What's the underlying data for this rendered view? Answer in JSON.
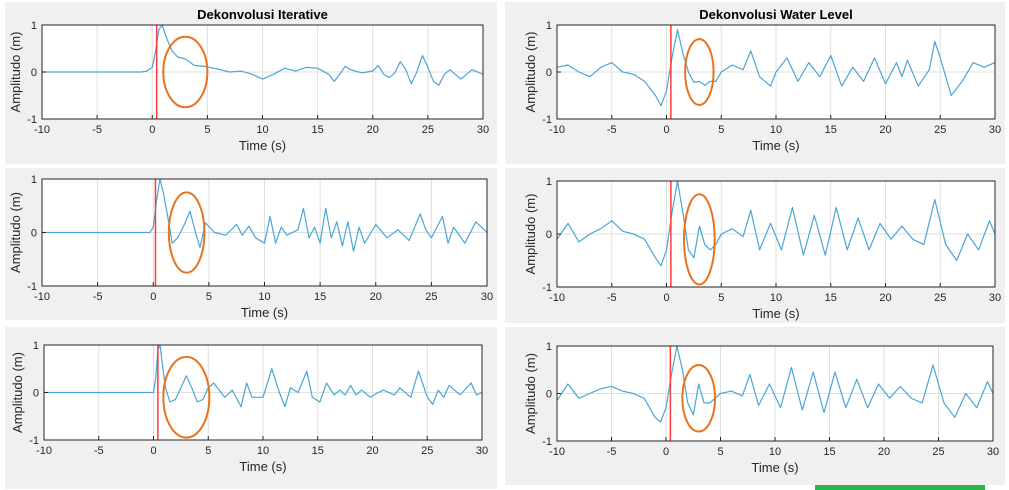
{
  "figure": {
    "colors": {
      "panel_bg": "#f0f0f0",
      "axes_bg": "#ffffff",
      "grid": "#dfdfdf",
      "axis": "#262626",
      "signal": "#4aa6d6",
      "marker": "#ff3b3b",
      "ellipse": "#e8731e"
    }
  },
  "chart_data": [
    {
      "type": "line",
      "title": "Dekonvolusi Iterative",
      "xlabel": "Time (s)",
      "ylabel": "Amplitudo (m)",
      "xlim": [
        -10,
        30
      ],
      "ylim": [
        -1,
        1
      ],
      "xticks": [
        -10,
        -5,
        0,
        5,
        10,
        15,
        20,
        25,
        30
      ],
      "yticks": [
        -1,
        0,
        1
      ],
      "grid": true,
      "vline_x": 0.4,
      "ellipse": {
        "cx": 3.0,
        "cy": 0.0,
        "rx": 2.0,
        "ry": 0.75
      },
      "x": [
        -10,
        -1.0,
        -0.5,
        0.0,
        0.3,
        0.6,
        0.9,
        1.3,
        1.8,
        2.3,
        3.0,
        3.8,
        4.8,
        6.0,
        7.0,
        8.0,
        9.0,
        10.0,
        11.0,
        12.0,
        13.0,
        14.0,
        15.0,
        16.0,
        16.5,
        17.0,
        17.5,
        18.0,
        19.0,
        20.0,
        20.5,
        21.0,
        21.5,
        22.0,
        22.5,
        23.0,
        23.5,
        24.0,
        24.5,
        25.0,
        25.5,
        26.0,
        26.5,
        27.0,
        28.0,
        29.0,
        30.0
      ],
      "y": [
        0.0,
        0.0,
        0.02,
        0.1,
        0.45,
        0.9,
        1.0,
        0.72,
        0.45,
        0.32,
        0.28,
        0.14,
        0.12,
        0.06,
        0.0,
        0.02,
        -0.04,
        -0.15,
        -0.05,
        0.08,
        0.02,
        0.1,
        0.08,
        -0.05,
        -0.2,
        -0.05,
        0.12,
        0.05,
        -0.02,
        0.02,
        0.14,
        -0.05,
        -0.12,
        -0.02,
        0.22,
        0.05,
        -0.25,
        0.0,
        0.35,
        0.1,
        -0.2,
        -0.28,
        -0.05,
        0.05,
        -0.15,
        0.05,
        -0.05
      ]
    },
    {
      "type": "line",
      "title": "Dekonvolusi Water Level",
      "xlabel": "Time (s)",
      "ylabel": "Amplitudo (m)",
      "xlim": [
        -10,
        30
      ],
      "ylim": [
        -1,
        1
      ],
      "xticks": [
        -10,
        -5,
        0,
        5,
        10,
        15,
        20,
        25,
        30
      ],
      "yticks": [
        -1,
        0,
        1
      ],
      "grid": true,
      "vline_x": 0.4,
      "ellipse": {
        "cx": 3.0,
        "cy": 0.0,
        "rx": 1.3,
        "ry": 0.7
      },
      "x": [
        -10,
        -9.0,
        -8.0,
        -7.0,
        -6.0,
        -5.0,
        -4.0,
        -3.0,
        -2.0,
        -1.0,
        -0.5,
        0.0,
        0.5,
        1.0,
        1.5,
        2.0,
        2.5,
        3.0,
        3.5,
        4.0,
        4.5,
        5.0,
        6.0,
        7.0,
        7.7,
        8.5,
        9.5,
        10.0,
        11.0,
        12.0,
        13.0,
        14.0,
        15.0,
        16.0,
        17.0,
        18.0,
        19.0,
        20.0,
        21.0,
        21.5,
        22.0,
        23.0,
        24.0,
        24.5,
        25.0,
        26.0,
        27.0,
        28.0,
        29.0,
        30.0
      ],
      "y": [
        0.1,
        0.15,
        0.0,
        -0.1,
        0.1,
        0.2,
        0.0,
        -0.05,
        -0.2,
        -0.5,
        -0.72,
        -0.4,
        0.3,
        0.9,
        0.4,
        0.0,
        -0.22,
        -0.2,
        -0.28,
        -0.2,
        -0.2,
        0.0,
        0.15,
        0.05,
        0.45,
        -0.1,
        -0.3,
        0.0,
        0.3,
        -0.2,
        0.2,
        -0.1,
        0.35,
        -0.3,
        0.1,
        -0.2,
        0.3,
        -0.25,
        0.2,
        -0.1,
        0.25,
        -0.3,
        0.05,
        0.65,
        0.3,
        -0.5,
        -0.2,
        0.2,
        0.1,
        0.2
      ]
    },
    {
      "type": "line",
      "title": "",
      "xlabel": "Time (s)",
      "ylabel": "Amplitudo (m)",
      "xlim": [
        -10,
        30
      ],
      "ylim": [
        -1,
        1
      ],
      "xticks": [
        -10,
        -5,
        0,
        5,
        10,
        15,
        20,
        25,
        30
      ],
      "yticks": [
        -1,
        0,
        1
      ],
      "grid": true,
      "vline_x": 0.2,
      "ellipse": {
        "cx": 3.0,
        "cy": 0.0,
        "rx": 1.6,
        "ry": 0.75
      },
      "x": [
        -10,
        -1.0,
        -0.3,
        0.0,
        0.3,
        0.6,
        0.9,
        1.3,
        1.7,
        2.2,
        2.8,
        3.3,
        3.8,
        4.2,
        4.7,
        5.5,
        6.5,
        7.5,
        8.0,
        8.6,
        9.2,
        10.0,
        10.5,
        11.0,
        11.5,
        12.0,
        13.0,
        13.5,
        14.0,
        14.5,
        15.0,
        15.5,
        16.0,
        16.5,
        17.0,
        17.5,
        18.0,
        18.5,
        19.0,
        20.0,
        21.0,
        22.0,
        23.0,
        24.0,
        24.5,
        25.0,
        26.0,
        26.5,
        27.0,
        28.0,
        29.0,
        30.0
      ],
      "y": [
        0.0,
        0.0,
        0.0,
        0.1,
        0.6,
        1.0,
        0.75,
        0.3,
        -0.2,
        -0.1,
        0.15,
        0.4,
        0.0,
        -0.28,
        0.18,
        0.0,
        -0.05,
        0.15,
        -0.05,
        0.12,
        -0.1,
        -0.2,
        0.3,
        -0.2,
        0.1,
        -0.05,
        0.05,
        0.45,
        -0.1,
        0.1,
        -0.2,
        0.45,
        -0.1,
        0.2,
        -0.25,
        0.2,
        -0.35,
        0.1,
        -0.2,
        0.15,
        -0.1,
        0.05,
        -0.15,
        0.35,
        0.05,
        -0.1,
        0.3,
        -0.2,
        0.1,
        -0.2,
        0.2,
        0.0
      ]
    },
    {
      "type": "line",
      "title": "",
      "xlabel": "Time (s)",
      "ylabel": "Amplitudo (m)",
      "xlim": [
        -10,
        30
      ],
      "ylim": [
        -1,
        1
      ],
      "xticks": [
        -10,
        -5,
        0,
        5,
        10,
        15,
        20,
        25,
        30
      ],
      "yticks": [
        -1,
        0,
        1
      ],
      "grid": true,
      "vline_x": 0.4,
      "ellipse": {
        "cx": 3.0,
        "cy": -0.1,
        "rx": 1.4,
        "ry": 0.85
      },
      "x": [
        -10,
        -9.0,
        -8.0,
        -7.0,
        -6.0,
        -5.0,
        -4.0,
        -3.0,
        -2.0,
        -1.0,
        -0.5,
        0.0,
        0.5,
        1.0,
        1.5,
        2.0,
        2.5,
        3.0,
        3.5,
        4.0,
        4.5,
        5.0,
        6.0,
        7.0,
        7.7,
        8.5,
        9.5,
        10.5,
        11.5,
        12.5,
        13.5,
        14.5,
        15.5,
        16.5,
        17.5,
        18.5,
        19.5,
        20.5,
        21.5,
        22.5,
        23.5,
        24.5,
        25.5,
        26.5,
        27.5,
        28.5,
        29.5,
        30.0
      ],
      "y": [
        -0.1,
        0.2,
        -0.15,
        0.0,
        0.1,
        0.25,
        0.05,
        0.0,
        -0.1,
        -0.45,
        -0.6,
        -0.3,
        0.4,
        1.0,
        0.4,
        -0.3,
        -0.45,
        0.15,
        -0.2,
        -0.3,
        -0.2,
        0.0,
        0.1,
        -0.05,
        0.45,
        -0.3,
        0.2,
        -0.3,
        0.5,
        -0.4,
        0.35,
        -0.4,
        0.5,
        -0.3,
        0.3,
        -0.3,
        0.2,
        -0.1,
        0.15,
        -0.1,
        -0.2,
        0.65,
        -0.2,
        -0.5,
        0.0,
        -0.3,
        0.25,
        0.0
      ]
    },
    {
      "type": "line",
      "title": "",
      "xlabel": "Time (s)",
      "ylabel": "Amplitudo (m)",
      "xlim": [
        -10,
        30
      ],
      "ylim": [
        -1,
        1
      ],
      "xticks": [
        -10,
        -5,
        0,
        5,
        10,
        15,
        20,
        25,
        30
      ],
      "yticks": [
        -1,
        0,
        1
      ],
      "grid": true,
      "vline_x": 0.4,
      "ellipse": {
        "cx": 3.0,
        "cy": -0.1,
        "rx": 2.1,
        "ry": 0.85
      },
      "x": [
        -10,
        -1.0,
        -0.4,
        0.0,
        0.2,
        0.4,
        0.6,
        0.8,
        1.1,
        1.5,
        2.0,
        2.5,
        3.0,
        3.5,
        4.0,
        4.5,
        5.0,
        5.5,
        6.5,
        7.2,
        8.0,
        8.5,
        9.0,
        10.0,
        10.8,
        11.5,
        12.0,
        12.5,
        13.2,
        14.0,
        14.5,
        15.2,
        15.8,
        16.5,
        17.0,
        17.5,
        18.0,
        18.5,
        19.0,
        19.8,
        20.5,
        21.0,
        22.0,
        22.5,
        23.5,
        24.2,
        25.0,
        25.5,
        26.0,
        26.5,
        27.0,
        28.0,
        29.0,
        29.5,
        30.0
      ],
      "y": [
        0.0,
        0.0,
        0.0,
        0.0,
        0.3,
        0.9,
        1.0,
        0.6,
        0.1,
        -0.2,
        -0.15,
        0.1,
        0.35,
        0.1,
        -0.2,
        -0.15,
        0.1,
        0.2,
        -0.1,
        0.05,
        -0.3,
        0.2,
        -0.1,
        -0.1,
        0.5,
        0.0,
        -0.3,
        0.1,
        0.0,
        0.45,
        -0.1,
        -0.2,
        0.2,
        -0.05,
        0.05,
        -0.05,
        0.15,
        -0.05,
        0.05,
        -0.1,
        0.0,
        0.05,
        -0.05,
        0.1,
        -0.1,
        0.45,
        -0.1,
        -0.25,
        0.05,
        -0.1,
        0.15,
        -0.05,
        0.2,
        -0.05,
        0.0
      ]
    },
    {
      "type": "line",
      "title": "",
      "xlabel": "Time (s)",
      "ylabel": "Amplitudo (m)",
      "xlim": [
        -10,
        30
      ],
      "ylim": [
        -1,
        1
      ],
      "xticks": [
        -10,
        -5,
        0,
        5,
        10,
        15,
        20,
        25,
        30
      ],
      "yticks": [
        -1,
        0,
        1
      ],
      "grid": true,
      "vline_x": 0.4,
      "ellipse": {
        "cx": 3.0,
        "cy": -0.1,
        "rx": 1.5,
        "ry": 0.7
      },
      "x": [
        -10,
        -9.0,
        -8.0,
        -7.0,
        -6.0,
        -5.0,
        -4.0,
        -3.0,
        -2.0,
        -1.0,
        -0.5,
        0.0,
        0.5,
        1.0,
        1.5,
        2.0,
        2.5,
        3.0,
        3.5,
        4.0,
        4.5,
        5.0,
        6.0,
        7.0,
        7.7,
        8.5,
        9.5,
        10.5,
        11.5,
        12.5,
        13.5,
        14.5,
        15.5,
        16.5,
        17.5,
        18.5,
        19.5,
        20.5,
        21.5,
        22.5,
        23.5,
        24.5,
        25.5,
        26.5,
        27.5,
        28.5,
        29.5,
        30.0
      ],
      "y": [
        -0.15,
        0.2,
        -0.1,
        0.0,
        0.1,
        0.15,
        0.05,
        0.0,
        -0.1,
        -0.5,
        -0.6,
        -0.3,
        0.4,
        1.0,
        0.5,
        -0.2,
        -0.45,
        0.2,
        -0.2,
        -0.2,
        -0.1,
        0.0,
        0.05,
        -0.05,
        0.4,
        -0.25,
        0.2,
        -0.3,
        0.55,
        -0.35,
        0.45,
        -0.4,
        0.45,
        -0.3,
        0.3,
        -0.3,
        0.2,
        -0.1,
        0.15,
        -0.1,
        -0.2,
        0.6,
        -0.2,
        -0.5,
        0.0,
        -0.3,
        0.25,
        0.0
      ]
    }
  ]
}
